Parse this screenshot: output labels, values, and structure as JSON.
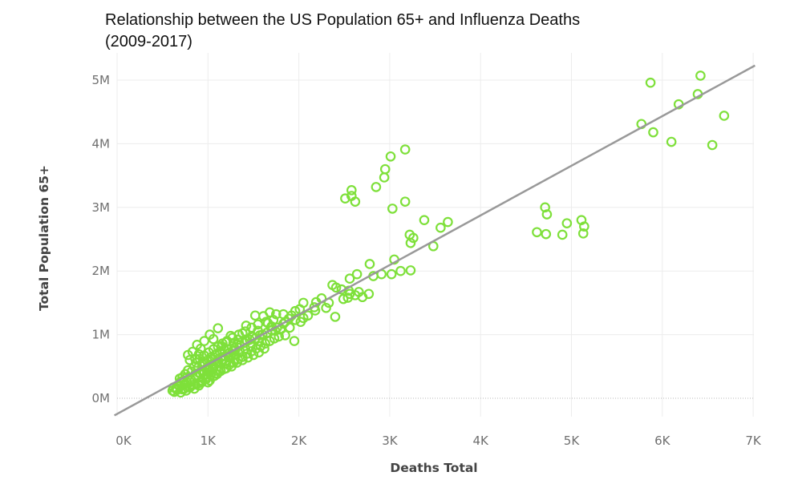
{
  "title": {
    "line1": "Relationship between the US Population 65+ and Influenza Deaths",
    "line2": "(2009-2017)"
  },
  "chart_data": {
    "type": "scatter",
    "title": "Relationship between the US Population 65+ and Influenza Deaths (2009-2017)",
    "xlabel": "Deaths Total",
    "ylabel": "Total Population 65+",
    "xlim": [
      0,
      7000
    ],
    "ylim": [
      0,
      5000000
    ],
    "x_ticks": [
      0,
      1000,
      2000,
      3000,
      4000,
      5000,
      6000,
      7000
    ],
    "x_tick_labels": [
      "0K",
      "1K",
      "2K",
      "3K",
      "4K",
      "5K",
      "6K",
      "7K"
    ],
    "y_ticks": [
      0,
      1000000,
      2000000,
      3000000,
      4000000,
      5000000
    ],
    "y_tick_labels": [
      "0M",
      "1M",
      "2M",
      "3M",
      "4M",
      "5M"
    ],
    "grid": true,
    "marker_color": "#7ee03a",
    "trendline_color": "#999999",
    "trendline": {
      "x": [
        -30,
        7020
      ],
      "y": [
        -270000,
        5230000
      ]
    },
    "points": [
      [
        5870,
        4960000
      ],
      [
        6420,
        5070000
      ],
      [
        6180,
        4620000
      ],
      [
        6390,
        4780000
      ],
      [
        6680,
        4440000
      ],
      [
        5770,
        4310000
      ],
      [
        5900,
        4180000
      ],
      [
        6100,
        4030000
      ],
      [
        6550,
        3980000
      ],
      [
        4620,
        2610000
      ],
      [
        4720,
        2580000
      ],
      [
        4900,
        2570000
      ],
      [
        4950,
        2750000
      ],
      [
        4710,
        3000000
      ],
      [
        4730,
        2890000
      ],
      [
        5110,
        2800000
      ],
      [
        5140,
        2700000
      ],
      [
        5130,
        2590000
      ],
      [
        3170,
        3910000
      ],
      [
        3010,
        3800000
      ],
      [
        2950,
        3600000
      ],
      [
        2940,
        3470000
      ],
      [
        2850,
        3320000
      ],
      [
        2580,
        3270000
      ],
      [
        2580,
        3180000
      ],
      [
        2510,
        3140000
      ],
      [
        2620,
        3090000
      ],
      [
        3170,
        3090000
      ],
      [
        3030,
        2980000
      ],
      [
        3380,
        2800000
      ],
      [
        3640,
        2770000
      ],
      [
        3560,
        2680000
      ],
      [
        3220,
        2570000
      ],
      [
        3260,
        2520000
      ],
      [
        3230,
        2440000
      ],
      [
        3480,
        2390000
      ],
      [
        3050,
        2180000
      ],
      [
        2780,
        2110000
      ],
      [
        3230,
        2010000
      ],
      [
        3120,
        2000000
      ],
      [
        3020,
        1950000
      ],
      [
        2910,
        1950000
      ],
      [
        2640,
        1950000
      ],
      [
        2560,
        1880000
      ],
      [
        2820,
        1920000
      ],
      [
        2370,
        1780000
      ],
      [
        2410,
        1740000
      ],
      [
        2470,
        1710000
      ],
      [
        2550,
        1690000
      ],
      [
        2660,
        1670000
      ],
      [
        2620,
        1620000
      ],
      [
        2770,
        1640000
      ],
      [
        2700,
        1590000
      ],
      [
        2540,
        1580000
      ],
      [
        2490,
        1560000
      ],
      [
        2250,
        1570000
      ],
      [
        2330,
        1500000
      ],
      [
        2050,
        1500000
      ],
      [
        2170,
        1430000
      ],
      [
        2010,
        1400000
      ],
      [
        2180,
        1380000
      ],
      [
        2100,
        1300000
      ],
      [
        2400,
        1280000
      ],
      [
        1960,
        1370000
      ],
      [
        1830,
        1320000
      ],
      [
        1890,
        1250000
      ],
      [
        1750,
        1320000
      ],
      [
        1680,
        1350000
      ],
      [
        1610,
        1290000
      ],
      [
        1520,
        1300000
      ],
      [
        1420,
        1140000
      ],
      [
        2020,
        1200000
      ],
      [
        1950,
        900000
      ],
      [
        1850,
        990000
      ],
      [
        1800,
        1080000
      ],
      [
        1700,
        1130000
      ],
      [
        1600,
        1000000
      ],
      [
        1550,
        1060000
      ],
      [
        1490,
        960000
      ],
      [
        1430,
        900000
      ],
      [
        1380,
        1020000
      ],
      [
        1320,
        850000
      ],
      [
        1250,
        980000
      ],
      [
        1200,
        880000
      ],
      [
        1110,
        1100000
      ],
      [
        1020,
        1000000
      ],
      [
        1060,
        930000
      ],
      [
        1150,
        820000
      ],
      [
        1220,
        700000
      ],
      [
        1300,
        760000
      ],
      [
        960,
        900000
      ],
      [
        920,
        780000
      ],
      [
        880,
        840000
      ],
      [
        830,
        730000
      ],
      [
        780,
        680000
      ],
      [
        800,
        600000
      ],
      [
        860,
        620000
      ],
      [
        900,
        690000
      ],
      [
        950,
        560000
      ],
      [
        1000,
        500000
      ],
      [
        1050,
        620000
      ],
      [
        1100,
        700000
      ],
      [
        1150,
        600000
      ],
      [
        1200,
        550000
      ],
      [
        1250,
        680000
      ],
      [
        1000,
        250000
      ],
      [
        1050,
        450000
      ],
      [
        1100,
        380000
      ],
      [
        850,
        500000
      ],
      [
        820,
        420000
      ],
      [
        780,
        440000
      ],
      [
        750,
        380000
      ],
      [
        720,
        330000
      ],
      [
        700,
        260000
      ],
      [
        740,
        220000
      ],
      [
        680,
        200000
      ],
      [
        660,
        130000
      ],
      [
        630,
        100000
      ],
      [
        610,
        120000
      ],
      [
        620,
        170000
      ],
      [
        650,
        160000
      ],
      [
        700,
        90000
      ],
      [
        720,
        140000
      ],
      [
        760,
        120000
      ],
      [
        800,
        170000
      ],
      [
        850,
        150000
      ],
      [
        900,
        200000
      ],
      [
        930,
        250000
      ],
      [
        980,
        330000
      ],
      [
        1020,
        280000
      ],
      [
        1070,
        350000
      ],
      [
        1120,
        420000
      ],
      [
        1180,
        460000
      ],
      [
        1230,
        520000
      ],
      [
        1280,
        560000
      ],
      [
        1330,
        610000
      ],
      [
        1380,
        650000
      ],
      [
        1430,
        700000
      ],
      [
        1480,
        740000
      ],
      [
        1530,
        780000
      ],
      [
        1580,
        820000
      ],
      [
        1630,
        860000
      ],
      [
        1680,
        900000
      ],
      [
        1730,
        940000
      ],
      [
        1780,
        970000
      ],
      [
        1620,
        780000
      ],
      [
        1560,
        720000
      ],
      [
        1500,
        680000
      ],
      [
        1440,
        640000
      ],
      [
        1380,
        600000
      ],
      [
        1320,
        560000
      ],
      [
        1260,
        500000
      ],
      [
        1200,
        470000
      ],
      [
        1140,
        430000
      ],
      [
        1080,
        390000
      ],
      [
        1030,
        360000
      ],
      [
        980,
        300000
      ],
      [
        940,
        270000
      ],
      [
        890,
        230000
      ],
      [
        840,
        210000
      ],
      [
        790,
        180000
      ],
      [
        740,
        150000
      ],
      [
        870,
        560000
      ],
      [
        910,
        620000
      ],
      [
        960,
        670000
      ],
      [
        1010,
        720000
      ],
      [
        1060,
        770000
      ],
      [
        1110,
        810000
      ],
      [
        1160,
        860000
      ],
      [
        1210,
        900000
      ],
      [
        1270,
        950000
      ],
      [
        1340,
        1000000
      ],
      [
        1410,
        1050000
      ],
      [
        1480,
        1110000
      ],
      [
        1550,
        1160000
      ],
      [
        1640,
        1200000
      ],
      [
        1720,
        1230000
      ],
      [
        1830,
        1170000
      ],
      [
        1900,
        1110000
      ],
      [
        1740,
        1060000
      ],
      [
        690,
        310000
      ],
      [
        730,
        280000
      ],
      [
        770,
        330000
      ],
      [
        810,
        300000
      ],
      [
        860,
        360000
      ],
      [
        900,
        400000
      ],
      [
        940,
        440000
      ],
      [
        990,
        480000
      ],
      [
        1040,
        530000
      ],
      [
        1090,
        570000
      ],
      [
        1140,
        640000
      ],
      [
        1190,
        660000
      ],
      [
        1240,
        720000
      ],
      [
        1290,
        790000
      ],
      [
        1350,
        830000
      ],
      [
        1400,
        870000
      ],
      [
        1460,
        920000
      ],
      [
        1520,
        940000
      ],
      [
        1570,
        990000
      ],
      [
        1650,
        1030000
      ],
      [
        1700,
        1070000
      ],
      [
        1760,
        1110000
      ],
      [
        1470,
        820000
      ],
      [
        1410,
        780000
      ],
      [
        1350,
        740000
      ],
      [
        1290,
        690000
      ],
      [
        1230,
        640000
      ],
      [
        1170,
        610000
      ],
      [
        1110,
        560000
      ],
      [
        1060,
        510000
      ],
      [
        1010,
        460000
      ],
      [
        960,
        420000
      ],
      [
        920,
        380000
      ],
      [
        870,
        340000
      ],
      [
        820,
        280000
      ],
      [
        770,
        250000
      ],
      [
        1280,
        870000
      ],
      [
        1330,
        920000
      ],
      [
        1180,
        760000
      ],
      [
        1130,
        730000
      ],
      [
        1080,
        680000
      ],
      [
        1030,
        640000
      ],
      [
        990,
        590000
      ],
      [
        940,
        530000
      ],
      [
        890,
        480000
      ],
      [
        2300,
        1420000
      ],
      [
        2560,
        1640000
      ],
      [
        2190,
        1510000
      ],
      [
        1960,
        1230000
      ],
      [
        1560,
        900000
      ],
      [
        1850,
        1200000
      ],
      [
        2050,
        1260000
      ],
      [
        1920,
        1300000
      ],
      [
        1660,
        1180000
      ]
    ]
  }
}
